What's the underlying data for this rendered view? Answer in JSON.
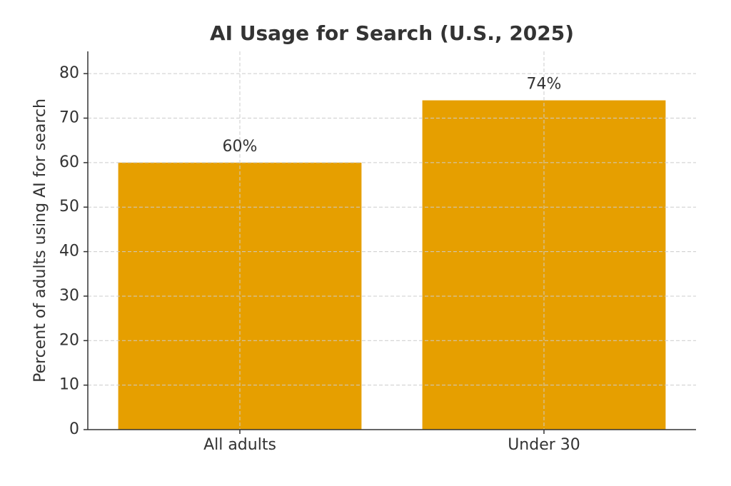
{
  "chart_data": {
    "type": "bar",
    "title": "AI Usage for Search (U.S., 2025)",
    "ylabel": "Percent of adults using AI for search",
    "categories": [
      "All adults",
      "Under 30"
    ],
    "values": [
      60,
      74
    ],
    "value_labels": [
      "60%",
      "74%"
    ],
    "color": "#e69f00",
    "ylim": [
      0,
      85
    ],
    "yticks": [
      0,
      10,
      20,
      30,
      40,
      50,
      60,
      70,
      80
    ],
    "grid": true
  }
}
